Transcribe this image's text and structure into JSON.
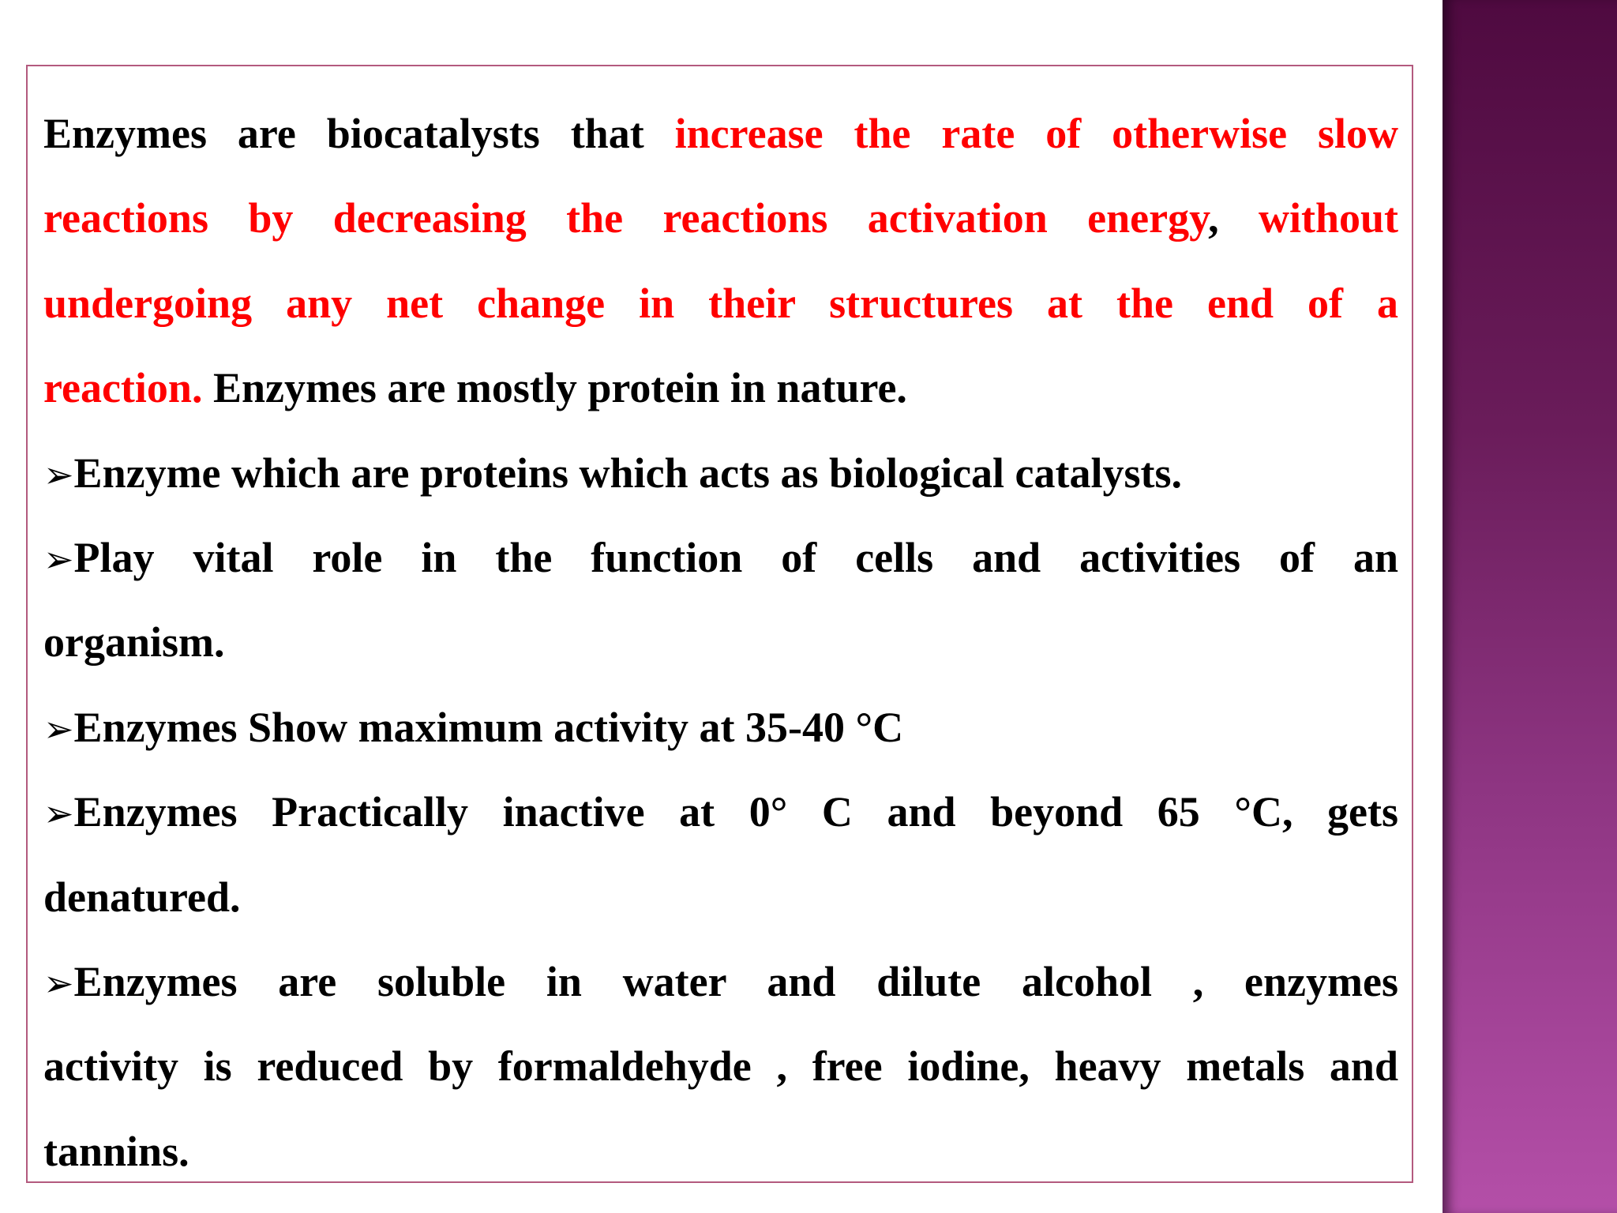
{
  "colors": {
    "highlight": "#ff0000",
    "text": "#000000",
    "border": "#b35a7e",
    "side_panel_top": "#4f0a40",
    "side_panel_bottom": "#b44fa8"
  },
  "bullet_icon": "➢",
  "lines": [
    {
      "justify": true,
      "bullet": false,
      "segments": [
        {
          "t": "Enzymes are biocatalysts that ",
          "red": false
        },
        {
          "t": "increase the rate of otherwise slow",
          "red": true
        }
      ]
    },
    {
      "justify": true,
      "bullet": false,
      "segments": [
        {
          "t": "reactions by decreasing the reactions activation energy",
          "red": true
        },
        {
          "t": ", ",
          "red": false
        },
        {
          "t": "without",
          "red": true
        }
      ]
    },
    {
      "justify": true,
      "bullet": false,
      "segments": [
        {
          "t": "undergoing any net change in their structures at the end of a",
          "red": true
        }
      ]
    },
    {
      "justify": false,
      "bullet": false,
      "segments": [
        {
          "t": "reaction.",
          "red": true
        },
        {
          "t": " Enzymes are mostly protein in nature.",
          "red": false
        }
      ]
    },
    {
      "justify": false,
      "bullet": true,
      "segments": [
        {
          "t": "Enzyme which are proteins which acts as biological catalysts.",
          "red": false
        }
      ]
    },
    {
      "justify": true,
      "bullet": true,
      "segments": [
        {
          "t": "Play vital role in the function of cells and activities of an",
          "red": false
        }
      ]
    },
    {
      "justify": false,
      "bullet": false,
      "segments": [
        {
          "t": "organism.",
          "red": false
        }
      ]
    },
    {
      "justify": false,
      "bullet": true,
      "segments": [
        {
          "t": "Enzymes Show maximum activity at 35-40 °C",
          "red": false
        }
      ]
    },
    {
      "justify": true,
      "bullet": true,
      "segments": [
        {
          "t": "Enzymes Practically inactive at 0° C and beyond 65 °C, gets",
          "red": false
        }
      ]
    },
    {
      "justify": false,
      "bullet": false,
      "segments": [
        {
          "t": "denatured.",
          "red": false
        }
      ]
    },
    {
      "justify": true,
      "bullet": true,
      "segments": [
        {
          "t": "Enzymes are soluble in water and dilute alcohol , enzymes",
          "red": false
        }
      ]
    },
    {
      "justify": true,
      "bullet": false,
      "segments": [
        {
          "t": "activity is reduced by formaldehyde , free iodine, heavy metals and",
          "red": false
        }
      ]
    },
    {
      "justify": false,
      "bullet": false,
      "segments": [
        {
          "t": "tannins.",
          "red": false
        }
      ]
    }
  ]
}
